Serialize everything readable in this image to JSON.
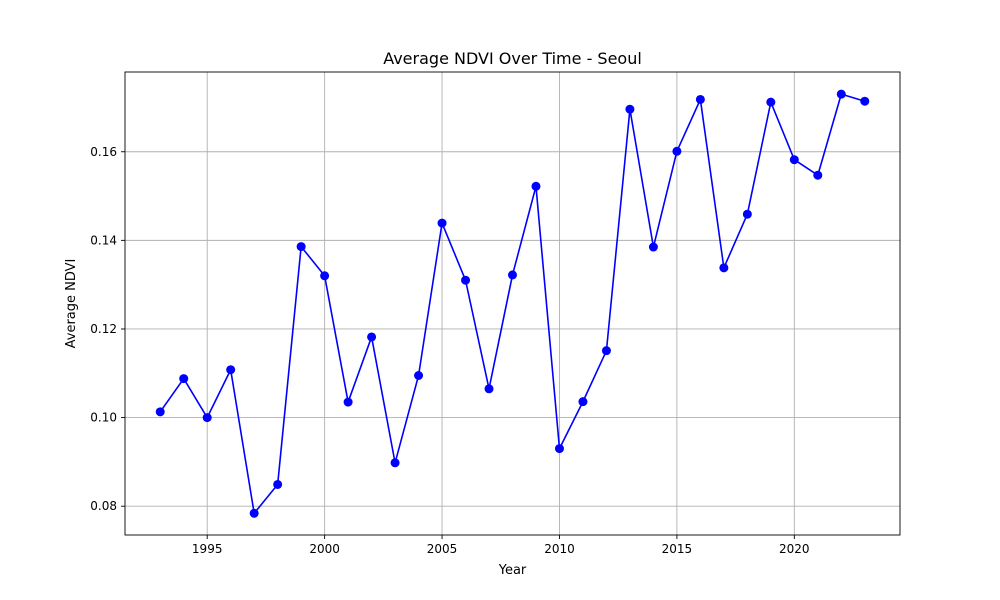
{
  "chart_data": {
    "type": "line",
    "title": "Average NDVI Over Time - Seoul",
    "xlabel": "Year",
    "ylabel": "Average NDVI",
    "xlim": [
      1991.5,
      2024.5
    ],
    "ylim": [
      0.0735,
      0.178
    ],
    "xticks": [
      1995,
      2000,
      2005,
      2010,
      2015,
      2020
    ],
    "xtick_labels": [
      "1995",
      "2000",
      "2005",
      "2010",
      "2015",
      "2020"
    ],
    "yticks": [
      0.08,
      0.1,
      0.12,
      0.14,
      0.16
    ],
    "ytick_labels": [
      "0.08",
      "0.10",
      "0.12",
      "0.14",
      "0.16"
    ],
    "grid": true,
    "series": [
      {
        "color": "#0000ff",
        "marker": "circle",
        "x": [
          1993,
          1994,
          1995,
          1996,
          1997,
          1998,
          1999,
          2000,
          2001,
          2002,
          2003,
          2004,
          2005,
          2006,
          2007,
          2008,
          2009,
          2010,
          2011,
          2012,
          2013,
          2014,
          2015,
          2016,
          2017,
          2018,
          2019,
          2020,
          2021,
          2022,
          2023
        ],
        "y": [
          0.1013,
          0.1088,
          0.1,
          0.1108,
          0.0784,
          0.0849,
          0.1386,
          0.132,
          0.1035,
          0.1182,
          0.0898,
          0.1095,
          0.1439,
          0.131,
          0.1065,
          0.1322,
          0.1522,
          0.093,
          0.1036,
          0.1151,
          0.1696,
          0.1385,
          0.1601,
          0.1718,
          0.1338,
          0.1459,
          0.1712,
          0.1582,
          0.1547,
          0.173,
          0.1714
        ]
      }
    ]
  }
}
